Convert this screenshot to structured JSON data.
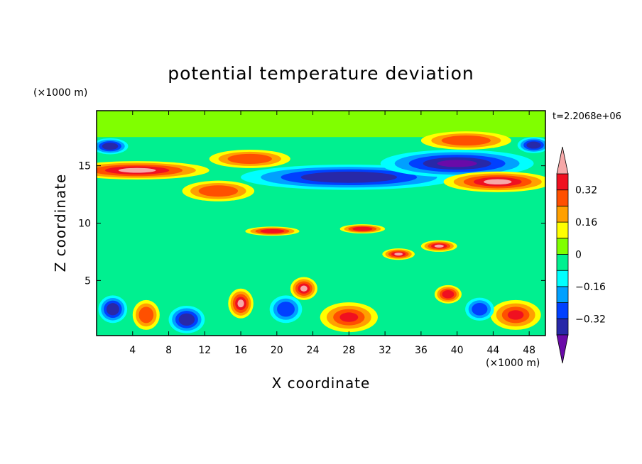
{
  "chart_data": {
    "type": "heatmap",
    "title": "potential temperature deviation",
    "time_label": "t=2.2068e+06",
    "xlabel": "X coordinate",
    "ylabel": "Z coordinate",
    "x_unit": "(×1000 m)",
    "y_unit": "(×1000 m)",
    "xlim": [
      0,
      49.8
    ],
    "ylim": [
      0.2,
      19.8
    ],
    "x_ticks": [
      4,
      8,
      12,
      16,
      20,
      24,
      28,
      32,
      36,
      40,
      44,
      48
    ],
    "y_ticks": [
      5,
      10,
      15
    ],
    "colorbar": {
      "tick_labels": [
        "0.32",
        "0.16",
        "0",
        "−0.16",
        "−0.32"
      ],
      "tick_values": [
        0.32,
        0.16,
        0,
        -0.16,
        -0.32
      ],
      "levels": [
        -0.4,
        -0.32,
        -0.24,
        -0.16,
        -0.08,
        0,
        0.08,
        0.16,
        0.24,
        0.32,
        0.4
      ],
      "colors": [
        "#6a0aa8",
        "#2828a8",
        "#0040ff",
        "#00a0ff",
        "#00ffff",
        "#00f090",
        "#80ff00",
        "#ffff00",
        "#ffa000",
        "#ff5000",
        "#f01020",
        "#f6a8a8"
      ],
      "extend": "both"
    },
    "field_features": [
      {
        "kind": "band",
        "x": [
          0,
          49.8
        ],
        "z": [
          17.5,
          19.8
        ],
        "value": 0.02
      },
      {
        "kind": "band",
        "x": [
          0,
          49.8
        ],
        "z": [
          5.5,
          12.0
        ],
        "value": -0.02
      },
      {
        "kind": "blob",
        "x": 4.5,
        "z": 14.6,
        "rx": 8.0,
        "ry": 0.8,
        "value": 0.42
      },
      {
        "kind": "blob",
        "x": 13.5,
        "z": 12.8,
        "rx": 4.0,
        "ry": 0.9,
        "value": 0.28
      },
      {
        "kind": "blob",
        "x": 17.0,
        "z": 15.6,
        "rx": 4.5,
        "ry": 0.8,
        "value": 0.3
      },
      {
        "kind": "blob",
        "x": 28.0,
        "z": 14.0,
        "rx": 12.0,
        "ry": 1.1,
        "value": -0.38
      },
      {
        "kind": "blob",
        "x": 40.0,
        "z": 15.2,
        "rx": 8.5,
        "ry": 1.2,
        "value": -0.4
      },
      {
        "kind": "blob",
        "x": 41.0,
        "z": 17.2,
        "rx": 5.0,
        "ry": 0.8,
        "value": 0.26
      },
      {
        "kind": "blob",
        "x": 44.5,
        "z": 13.6,
        "rx": 6.0,
        "ry": 0.9,
        "value": 0.4
      },
      {
        "kind": "blob",
        "x": 1.5,
        "z": 16.7,
        "rx": 2.0,
        "ry": 0.7,
        "value": -0.36
      },
      {
        "kind": "blob",
        "x": 48.5,
        "z": 16.8,
        "rx": 1.8,
        "ry": 0.7,
        "value": -0.36
      },
      {
        "kind": "blob",
        "x": 19.5,
        "z": 9.3,
        "rx": 3.0,
        "ry": 0.4,
        "value": 0.38
      },
      {
        "kind": "blob",
        "x": 29.5,
        "z": 9.5,
        "rx": 2.5,
        "ry": 0.4,
        "value": 0.38
      },
      {
        "kind": "blob",
        "x": 33.5,
        "z": 7.3,
        "rx": 1.8,
        "ry": 0.5,
        "value": 0.4
      },
      {
        "kind": "blob",
        "x": 38.0,
        "z": 8.0,
        "rx": 2.0,
        "ry": 0.5,
        "value": 0.4
      },
      {
        "kind": "blob",
        "x": 23.0,
        "z": 4.3,
        "rx": 1.5,
        "ry": 1.0,
        "value": 0.4
      },
      {
        "kind": "blob",
        "x": 39.0,
        "z": 3.8,
        "rx": 1.5,
        "ry": 0.8,
        "value": 0.35
      },
      {
        "kind": "blob",
        "x": 16.0,
        "z": 3.0,
        "rx": 1.4,
        "ry": 1.3,
        "value": 0.4
      },
      {
        "kind": "blob",
        "x": 10.0,
        "z": 1.6,
        "rx": 2.0,
        "ry": 1.2,
        "value": -0.36
      },
      {
        "kind": "blob",
        "x": 1.8,
        "z": 2.5,
        "rx": 1.6,
        "ry": 1.2,
        "value": -0.36
      },
      {
        "kind": "blob",
        "x": 28.0,
        "z": 1.8,
        "rx": 3.2,
        "ry": 1.3,
        "value": 0.32
      },
      {
        "kind": "blob",
        "x": 46.5,
        "z": 2.0,
        "rx": 2.8,
        "ry": 1.3,
        "value": 0.32
      },
      {
        "kind": "blob",
        "x": 5.5,
        "z": 2.0,
        "rx": 1.5,
        "ry": 1.3,
        "value": 0.3
      },
      {
        "kind": "blob",
        "x": 21.0,
        "z": 2.5,
        "rx": 1.8,
        "ry": 1.2,
        "value": -0.3
      },
      {
        "kind": "blob",
        "x": 42.5,
        "z": 2.5,
        "rx": 1.6,
        "ry": 1.0,
        "value": -0.28
      }
    ]
  }
}
